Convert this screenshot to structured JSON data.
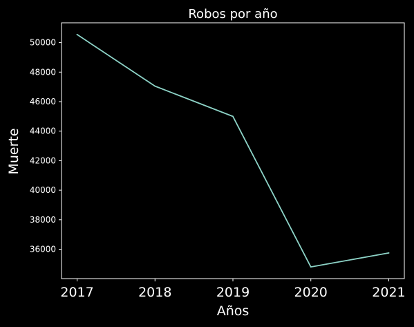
{
  "chart_data": {
    "type": "line",
    "title": "Robos por año",
    "xlabel": "Años",
    "ylabel": "Muerte",
    "x": [
      2017,
      2018,
      2019,
      2020,
      2021
    ],
    "series": [
      {
        "values": [
          50550,
          47050,
          45000,
          34800,
          35750
        ],
        "color": "#8dd3c7"
      }
    ],
    "xticks": [
      "2017",
      "2018",
      "2019",
      "2020",
      "2021"
    ],
    "yticks": [
      36000,
      38000,
      40000,
      42000,
      44000,
      46000,
      48000,
      50000
    ],
    "ytick_labels": [
      "36000",
      "38000",
      "40000",
      "42000",
      "44000",
      "46000",
      "48000",
      "50000"
    ],
    "xlim": [
      2016.8,
      2021.2
    ],
    "ylim": [
      34010,
      51340
    ],
    "grid": false,
    "legend": "none",
    "background": "#000000",
    "foreground": "#ffffff"
  }
}
